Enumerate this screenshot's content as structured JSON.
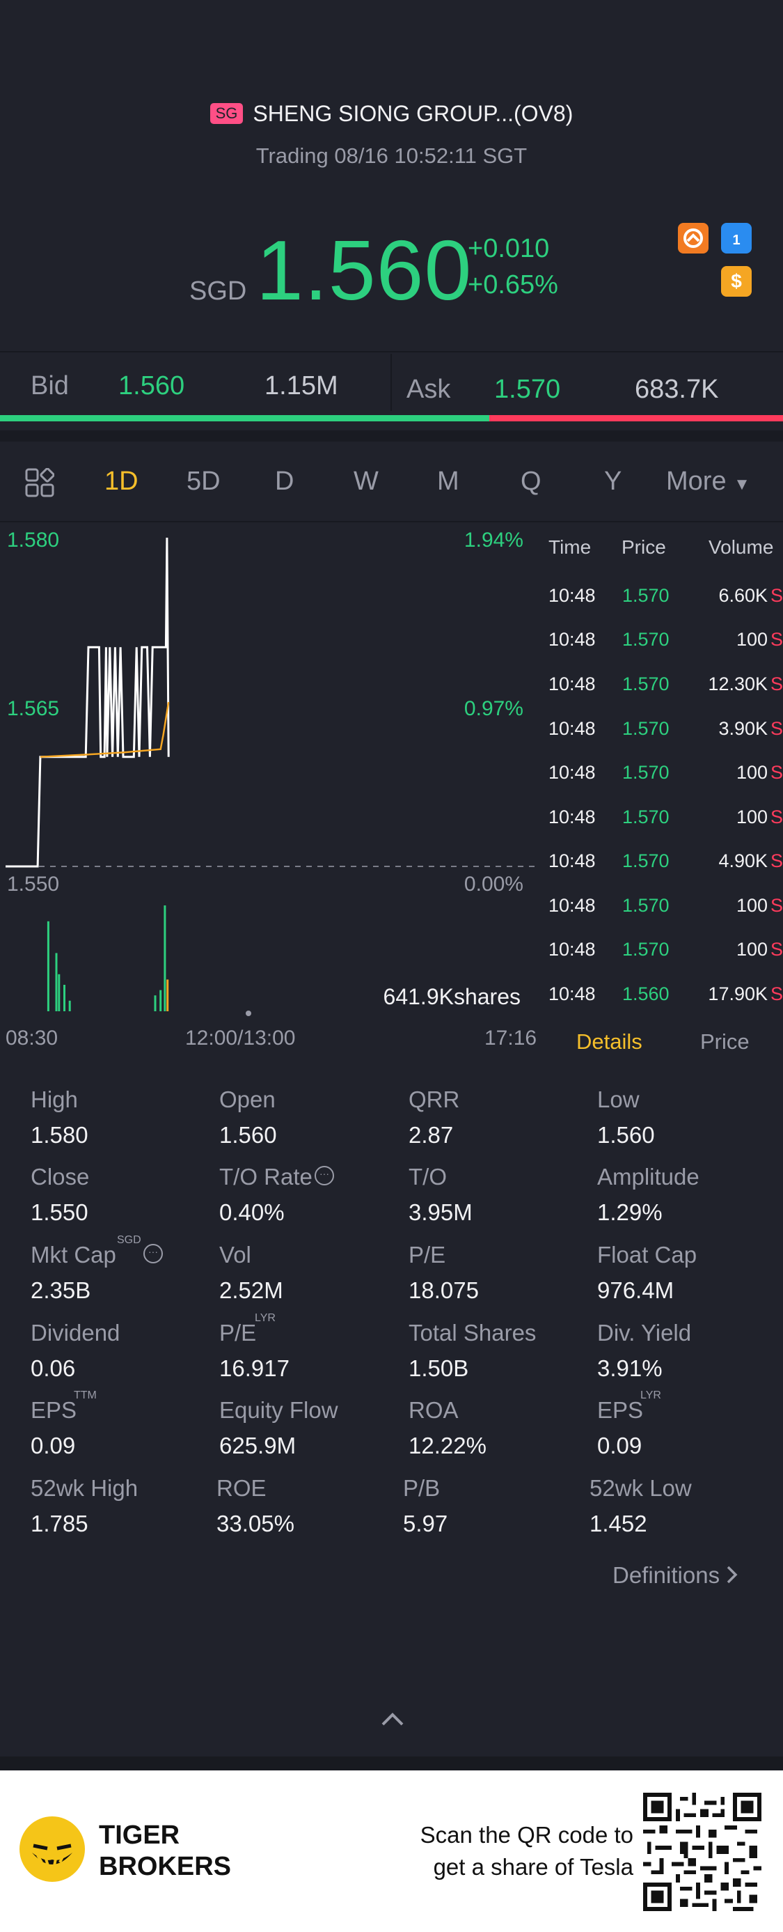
{
  "header": {
    "market_badge": "SG",
    "title": "SHENG SIONG GROUP...(OV8)",
    "status": "Trading 08/16 10:52:11 SGT"
  },
  "quote": {
    "currency": "SGD",
    "price": "1.560",
    "change": "+0.010",
    "change_pct": "+0.65%",
    "icon_blue_label": "1",
    "icon_dollar_label": "$"
  },
  "bidask": {
    "bid_label": "Bid",
    "bid_price": "1.560",
    "bid_volume": "1.15M",
    "ask_label": "Ask",
    "ask_price": "1.570",
    "ask_volume": "683.7K",
    "bid_ratio": 0.625
  },
  "tabs": [
    "1D",
    "5D",
    "D",
    "W",
    "M",
    "Q",
    "Y"
  ],
  "more_label": "More",
  "active_tab": "1D",
  "chart_data": {
    "type": "line",
    "y_left_ticks": [
      "1.580",
      "1.565",
      "1.550"
    ],
    "y_right_ticks": [
      "1.94%",
      "0.97%",
      "0.00%"
    ],
    "ylim": [
      1.55,
      1.58
    ],
    "prev_close": 1.55,
    "x_ticks": [
      "08:30",
      "12:00/13:00",
      "17:16"
    ],
    "volume_label": "641.9Kshares",
    "price_series": [
      {
        "t": 0.0,
        "p": 1.55
      },
      {
        "t": 0.06,
        "p": 1.55
      },
      {
        "t": 0.065,
        "p": 1.56
      },
      {
        "t": 0.15,
        "p": 1.56
      },
      {
        "t": 0.155,
        "p": 1.57
      },
      {
        "t": 0.175,
        "p": 1.57
      },
      {
        "t": 0.178,
        "p": 1.56
      },
      {
        "t": 0.185,
        "p": 1.56
      },
      {
        "t": 0.188,
        "p": 1.57
      },
      {
        "t": 0.19,
        "p": 1.56
      },
      {
        "t": 0.195,
        "p": 1.57
      },
      {
        "t": 0.2,
        "p": 1.56
      },
      {
        "t": 0.205,
        "p": 1.57
      },
      {
        "t": 0.21,
        "p": 1.56
      },
      {
        "t": 0.215,
        "p": 1.57
      },
      {
        "t": 0.22,
        "p": 1.56
      },
      {
        "t": 0.24,
        "p": 1.56
      },
      {
        "t": 0.245,
        "p": 1.57
      },
      {
        "t": 0.25,
        "p": 1.56
      },
      {
        "t": 0.255,
        "p": 1.57
      },
      {
        "t": 0.265,
        "p": 1.57
      },
      {
        "t": 0.27,
        "p": 1.56
      },
      {
        "t": 0.275,
        "p": 1.57
      },
      {
        "t": 0.3,
        "p": 1.57
      },
      {
        "t": 0.302,
        "p": 1.58
      },
      {
        "t": 0.305,
        "p": 1.56
      }
    ],
    "avg_series": [
      {
        "t": 0.065,
        "p": 1.56
      },
      {
        "t": 0.15,
        "p": 1.5602
      },
      {
        "t": 0.22,
        "p": 1.5604
      },
      {
        "t": 0.29,
        "p": 1.5607
      },
      {
        "t": 0.295,
        "p": 1.562
      },
      {
        "t": 0.305,
        "p": 1.565
      }
    ],
    "volume_bars": [
      {
        "t": 0.08,
        "v": 0.85
      },
      {
        "t": 0.095,
        "v": 0.55
      },
      {
        "t": 0.1,
        "v": 0.35
      },
      {
        "t": 0.11,
        "v": 0.25
      },
      {
        "t": 0.12,
        "v": 0.1
      },
      {
        "t": 0.28,
        "v": 0.15
      },
      {
        "t": 0.29,
        "v": 0.2
      },
      {
        "t": 0.298,
        "v": 1.0
      },
      {
        "t": 0.303,
        "v": 0.3
      }
    ]
  },
  "trades": {
    "headers": [
      "Time",
      "Price",
      "Volume"
    ],
    "rows": [
      {
        "time": "10:48",
        "price": "1.570",
        "volume": "6.60K",
        "flag": "S"
      },
      {
        "time": "10:48",
        "price": "1.570",
        "volume": "100",
        "flag": "S"
      },
      {
        "time": "10:48",
        "price": "1.570",
        "volume": "12.30K",
        "flag": "S"
      },
      {
        "time": "10:48",
        "price": "1.570",
        "volume": "3.90K",
        "flag": "S"
      },
      {
        "time": "10:48",
        "price": "1.570",
        "volume": "100",
        "flag": "S"
      },
      {
        "time": "10:48",
        "price": "1.570",
        "volume": "100",
        "flag": "S"
      },
      {
        "time": "10:48",
        "price": "1.570",
        "volume": "4.90K",
        "flag": "S"
      },
      {
        "time": "10:48",
        "price": "1.570",
        "volume": "100",
        "flag": "S"
      },
      {
        "time": "10:48",
        "price": "1.570",
        "volume": "100",
        "flag": "S"
      },
      {
        "time": "10:48",
        "price": "1.560",
        "volume": "17.90K",
        "flag": "S"
      }
    ],
    "tab_details": "Details",
    "tab_price": "Price"
  },
  "stats": {
    "high_label": "High",
    "high": "1.580",
    "open_label": "Open",
    "open": "1.560",
    "qrr_label": "QRR",
    "qrr": "2.87",
    "low_label": "Low",
    "low": "1.560",
    "close_label": "Close",
    "close": "1.550",
    "to_rate_label": "T/O Rate",
    "to_rate": "0.40%",
    "to_label": "T/O",
    "to": "3.95M",
    "amplitude_label": "Amplitude",
    "amplitude": "1.29%",
    "mkt_cap_label": "Mkt Cap",
    "mkt_cap_sup": "SGD",
    "mkt_cap": "2.35B",
    "vol_label": "Vol",
    "vol": "2.52M",
    "pe_label": "P/E",
    "pe": "18.075",
    "float_cap_label": "Float Cap",
    "float_cap": "976.4M",
    "dividend_label": "Dividend",
    "dividend": "0.06",
    "pe_lyr_label": "P/E",
    "pe_lyr_sup": "LYR",
    "pe_lyr": "16.917",
    "total_shares_label": "Total Shares",
    "total_shares": "1.50B",
    "div_yield_label": "Div. Yield",
    "div_yield": "3.91%",
    "eps_ttm_label": "EPS",
    "eps_ttm_sup": "TTM",
    "eps_ttm": "0.09",
    "equity_flow_label": "Equity Flow",
    "equity_flow": "625.9M",
    "roa_label": "ROA",
    "roa": "12.22%",
    "eps_lyr_label": "EPS",
    "eps_lyr_sup": "LYR",
    "eps_lyr": "0.09",
    "wk52_high_label": "52wk High",
    "wk52_high": "1.785",
    "roe_label": "ROE",
    "roe": "33.05%",
    "pb_label": "P/B",
    "pb": "5.97",
    "wk52_low_label": "52wk Low",
    "wk52_low": "1.452"
  },
  "definitions_label": "Definitions",
  "footer": {
    "brand_line1": "TIGER",
    "brand_line2": "BROKERS",
    "scan_line1": "Scan the QR code to",
    "scan_line2": "get a share of Tesla"
  },
  "colors": {
    "background": "#20222b",
    "up": "#2dd07f",
    "down": "#ff3b5c",
    "accent": "#f5bf2b",
    "avg_line": "#f5a623"
  }
}
